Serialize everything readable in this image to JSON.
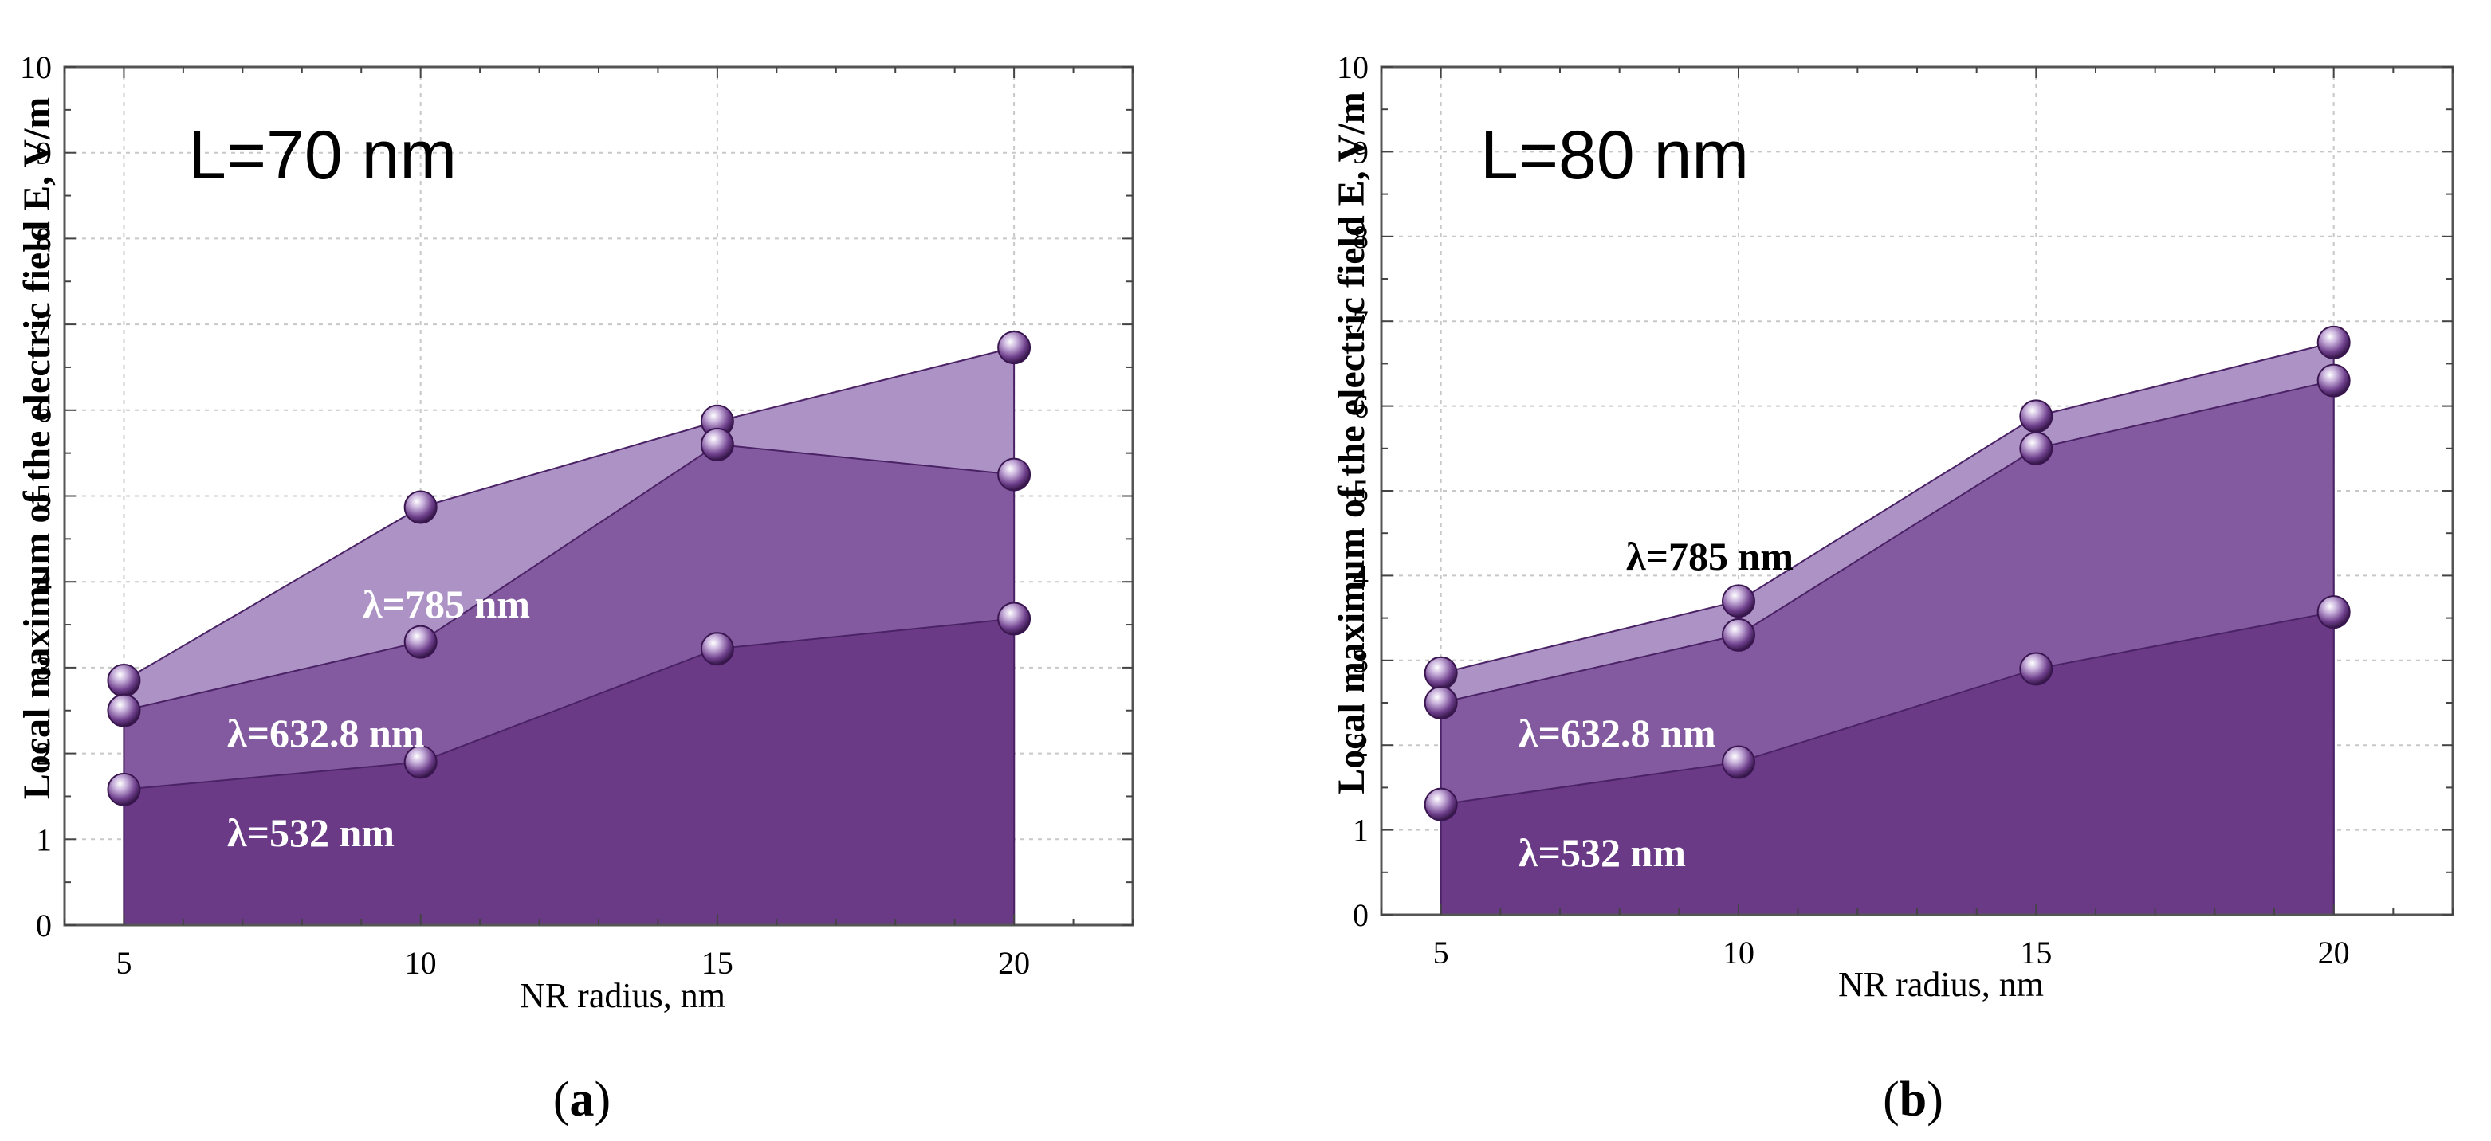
{
  "chart_data": [
    {
      "type": "area",
      "title": "L=70 nm",
      "xlabel": "NR radius, nm",
      "ylabel": "Local maximum of the electric field E, V/m",
      "caption": {
        "open": "(",
        "letter": "a",
        "close": ")"
      },
      "x": [
        5,
        10,
        15,
        20
      ],
      "xticks": [
        "5",
        "10",
        "15",
        "20"
      ],
      "yticks": [
        "0",
        "1",
        "2",
        "3",
        "4",
        "5",
        "6",
        "7",
        "8",
        "9",
        "10"
      ],
      "xlim": [
        4,
        22
      ],
      "ylim": [
        0,
        10
      ],
      "grid": true,
      "series": [
        {
          "name": "λ=785 nm",
          "values": [
            2.85,
            4.87,
            5.87,
            6.73
          ],
          "fill": "#ad93c5",
          "label_color": "#ffffff"
        },
        {
          "name": "λ=632.8 nm",
          "values": [
            2.5,
            3.3,
            5.6,
            5.25
          ],
          "fill": "#835a9f",
          "label_color": "#ffffff"
        },
        {
          "name": "λ=532 nm",
          "values": [
            1.58,
            1.9,
            3.22,
            3.57
          ],
          "fill": "#6b3a86",
          "label_color": "#ffffff"
        }
      ]
    },
    {
      "type": "area",
      "title": "L=80 nm",
      "xlabel": "NR radius, nm",
      "ylabel": "Local maximum of the electric field E, V/m",
      "caption": {
        "open": "(",
        "letter": "b",
        "close": ")"
      },
      "x": [
        5,
        10,
        15,
        20
      ],
      "xticks": [
        "5",
        "10",
        "15",
        "20"
      ],
      "yticks": [
        "0",
        "1",
        "2",
        "3",
        "4",
        "5",
        "6",
        "7",
        "8",
        "9",
        "10"
      ],
      "xlim": [
        4,
        22
      ],
      "ylim": [
        0,
        10
      ],
      "grid": true,
      "series": [
        {
          "name": "λ=785 nm",
          "values": [
            2.85,
            3.7,
            5.88,
            6.75
          ],
          "fill": "#ad93c5",
          "label_color": "#000000"
        },
        {
          "name": "λ=632.8 nm",
          "values": [
            2.5,
            3.3,
            5.5,
            6.3
          ],
          "fill": "#835a9f",
          "label_color": "#ffffff"
        },
        {
          "name": "λ=532 nm",
          "values": [
            1.3,
            1.8,
            2.9,
            3.57
          ],
          "fill": "#6b3a86",
          "label_color": "#ffffff"
        }
      ]
    }
  ]
}
